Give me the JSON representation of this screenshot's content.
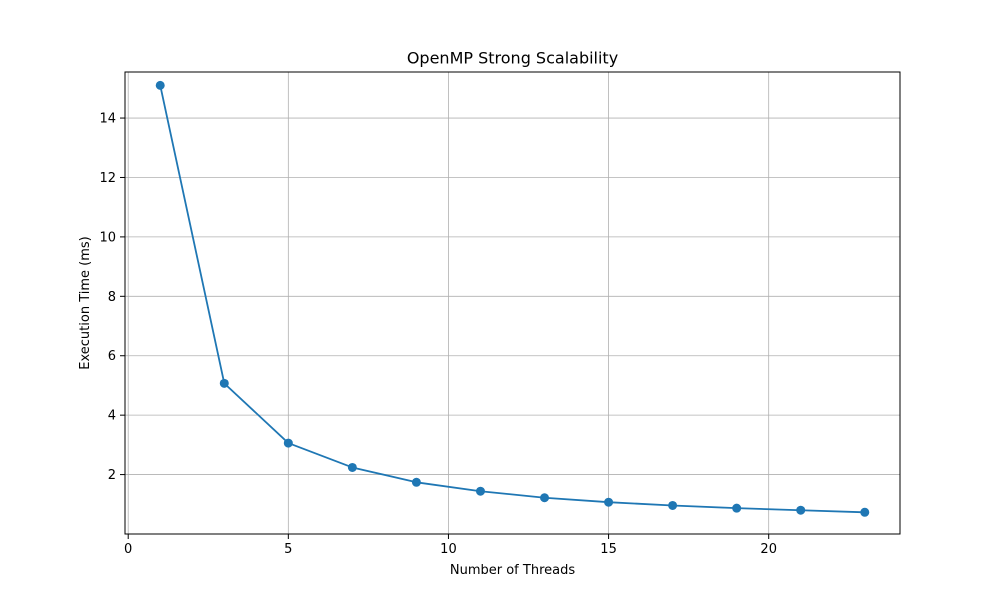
{
  "chart_data": {
    "type": "line",
    "title": "OpenMP Strong Scalability",
    "xlabel": "Number of Threads",
    "ylabel": "Execution Time (ms)",
    "xlim": [
      -0.1,
      24.1
    ],
    "ylim": [
      0.0,
      15.55
    ],
    "xticks": [
      0,
      5,
      10,
      15,
      20
    ],
    "yticks": [
      2,
      4,
      6,
      8,
      10,
      12,
      14
    ],
    "grid": true,
    "series": [
      {
        "x": [
          1,
          3,
          5,
          7,
          9,
          11,
          13,
          15,
          17,
          19,
          21,
          23
        ],
        "values": [
          15.1,
          5.07,
          3.06,
          2.24,
          1.74,
          1.44,
          1.22,
          1.07,
          0.96,
          0.87,
          0.8,
          0.73
        ],
        "color": "#1f77b4",
        "marker": "circle"
      }
    ]
  }
}
